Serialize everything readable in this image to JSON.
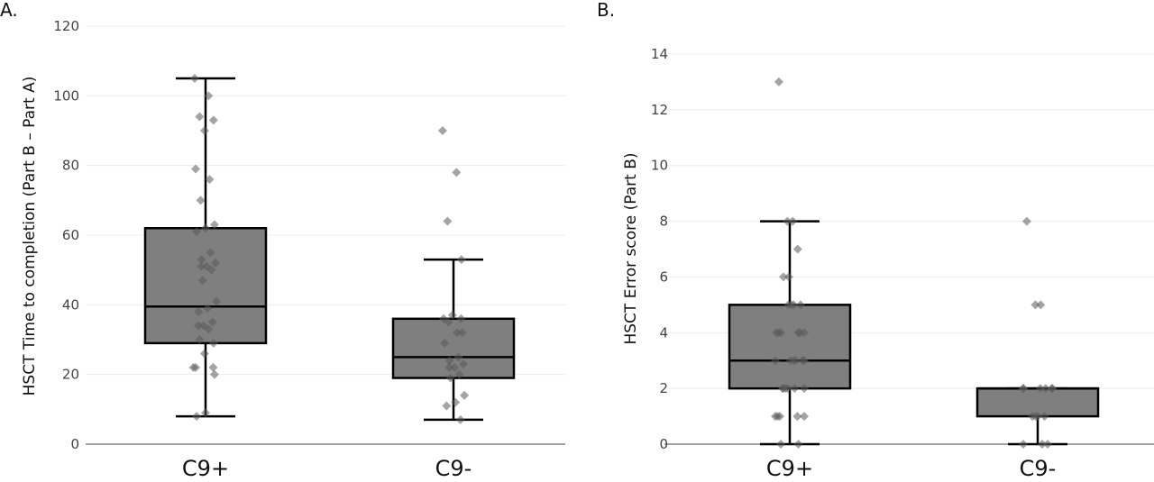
{
  "chart_data": [
    {
      "panel_label": "A.",
      "type": "box",
      "xlabel": "",
      "ylabel": "HSCT Time to completion (Part B – Part A)",
      "ylim": [
        0,
        120
      ],
      "yticks": [
        0,
        20,
        40,
        60,
        80,
        100,
        120
      ],
      "grid": true,
      "categories": [
        "C9+",
        "C9-"
      ],
      "boxes": [
        {
          "category": "C9+",
          "whisker_low": 8,
          "q1": 29,
          "median": 39.5,
          "q3": 62,
          "whisker_high": 105
        },
        {
          "category": "C9-",
          "whisker_low": 7,
          "q1": 19,
          "median": 25,
          "q3": 36,
          "whisker_high": 53
        }
      ],
      "points": [
        [
          105,
          100,
          94,
          93,
          90,
          79,
          76,
          70,
          63,
          62,
          61,
          55,
          53,
          52,
          51,
          51,
          50,
          47,
          41,
          39,
          38,
          35,
          34,
          34,
          33,
          30,
          29,
          26,
          22,
          22,
          22,
          20,
          9,
          8
        ],
        [
          90,
          78,
          64,
          53,
          37,
          36,
          36,
          35,
          32,
          32,
          29,
          25,
          24,
          23,
          22,
          22,
          20,
          19,
          14,
          12,
          11,
          7
        ]
      ]
    },
    {
      "panel_label": "B.",
      "type": "box",
      "xlabel": "",
      "ylabel": "HSCT Error score (Part B)",
      "ylim": [
        0,
        14
      ],
      "yticks": [
        0,
        2,
        4,
        6,
        8,
        10,
        12,
        14
      ],
      "grid": true,
      "categories": [
        "C9+",
        "C9-"
      ],
      "boxes": [
        {
          "category": "C9+",
          "whisker_low": 0,
          "q1": 2,
          "median": 3,
          "q3": 5,
          "whisker_high": 8
        },
        {
          "category": "C9-",
          "whisker_low": 0,
          "q1": 1,
          "median": 2,
          "q3": 2,
          "whisker_high": 2
        }
      ],
      "points": [
        [
          13,
          8,
          8,
          7,
          6,
          6,
          5,
          5,
          5,
          5,
          4,
          4,
          4,
          4,
          4,
          4,
          3,
          3,
          3,
          3,
          3,
          3,
          2,
          2,
          2,
          2,
          2,
          2,
          1,
          1,
          1,
          1,
          1,
          0,
          0
        ],
        [
          8,
          5,
          5,
          2,
          2,
          2,
          2,
          2,
          2,
          1,
          1,
          1,
          1,
          0,
          0,
          0
        ]
      ]
    }
  ]
}
